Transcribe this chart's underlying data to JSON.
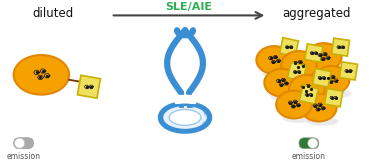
{
  "title_left": "diluted",
  "title_right": "aggregated",
  "arrow_label": "SLE/AIE",
  "arrow_color": "#444444",
  "arrow_label_color": "#2db050",
  "bg_color": "#ffffff",
  "orange_fill": "#f5a200",
  "orange_edge": "#e08800",
  "yellow_fill": "#f0e060",
  "yellow_edge": "#c8b000",
  "blue_color": "#3a8fd4",
  "blue_light": "#a0c8ee",
  "toggle_off_bg": "#aaaaaa",
  "toggle_on_bg": "#2e7d32",
  "toggle_knob": "#ffffff",
  "shadow_color": "#c8c8cc",
  "mol_color": "#1a1a1a",
  "bond_color": "#7a3300",
  "ring_text_color": "#5090c8",
  "emission_label": "emission"
}
